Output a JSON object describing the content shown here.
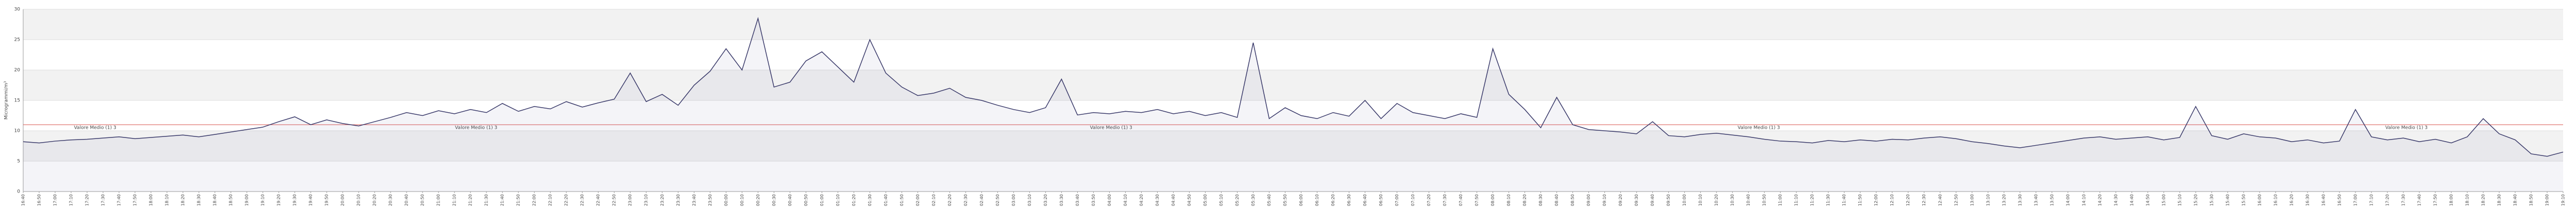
{
  "chart_data": {
    "type": "line",
    "y_label": "Microgrammi/m³",
    "ylim": [
      0,
      30
    ],
    "yticks": [
      0,
      5,
      10,
      15,
      20,
      25,
      30
    ],
    "grid": true,
    "mean_line": {
      "value": 11,
      "label": "Valore Medio (1) 3",
      "color": "#d9534f"
    },
    "categories": [
      "16:40",
      "16:50",
      "17:00",
      "17:10",
      "17:20",
      "17:30",
      "17:40",
      "17:50",
      "18:00",
      "18:10",
      "18:20",
      "18:30",
      "18:40",
      "18:50",
      "19:00",
      "19:10",
      "19:20",
      "19:30",
      "19:40",
      "19:50",
      "20:00",
      "20:10",
      "20:20",
      "20:30",
      "20:40",
      "20:50",
      "21:00",
      "21:10",
      "21:20",
      "21:30",
      "21:40",
      "21:50",
      "22:00",
      "22:10",
      "22:20",
      "22:30",
      "22:40",
      "22:50",
      "23:00",
      "23:10",
      "23:20",
      "23:30",
      "23:40",
      "23:50",
      "00:00",
      "00:10",
      "00:20",
      "00:30",
      "00:40",
      "00:50",
      "01:00",
      "01:10",
      "01:20",
      "01:30",
      "01:40",
      "01:50",
      "02:00",
      "02:10",
      "02:20",
      "02:30",
      "02:40",
      "02:50",
      "03:00",
      "03:10",
      "03:20",
      "03:30",
      "03:40",
      "03:50",
      "04:00",
      "04:10",
      "04:20",
      "04:30",
      "04:40",
      "04:50",
      "05:00",
      "05:10",
      "05:20",
      "05:30",
      "05:40",
      "05:50",
      "06:00",
      "06:10",
      "06:20",
      "06:30",
      "06:40",
      "06:50",
      "07:00",
      "07:10",
      "07:20",
      "07:30",
      "07:40",
      "07:50",
      "08:00",
      "08:10",
      "08:20",
      "08:30",
      "08:40",
      "08:50",
      "09:00",
      "09:10",
      "09:20",
      "09:30",
      "09:40",
      "09:50",
      "10:00",
      "10:10",
      "10:20",
      "10:30",
      "10:40",
      "10:50",
      "11:00",
      "11:10",
      "11:20",
      "11:30",
      "11:40",
      "11:50",
      "12:00",
      "12:10",
      "12:20",
      "12:30",
      "12:40",
      "12:50",
      "13:00",
      "13:10",
      "13:20",
      "13:30",
      "13:40",
      "13:50",
      "14:00",
      "14:10",
      "14:20",
      "14:30",
      "14:40",
      "14:50",
      "15:00",
      "15:10",
      "15:20",
      "15:30",
      "15:40",
      "15:50",
      "16:00",
      "16:10",
      "16:20",
      "16:30",
      "16:40",
      "16:50",
      "17:00",
      "17:10",
      "17:20",
      "17:30",
      "17:40",
      "17:50",
      "18:00",
      "18:10",
      "18:20",
      "18:30",
      "18:40",
      "18:50",
      "19:00",
      "19:10"
    ],
    "series": [
      {
        "color": "#3a3a6a",
        "values": [
          8.2,
          8.0,
          8.3,
          8.5,
          8.6,
          8.8,
          9.0,
          8.7,
          8.9,
          9.1,
          9.3,
          9.0,
          9.4,
          9.8,
          10.2,
          10.6,
          11.5,
          12.3,
          11.0,
          11.8,
          11.2,
          10.8,
          11.5,
          12.2,
          13.0,
          12.5,
          13.3,
          12.8,
          13.5,
          13.0,
          14.5,
          13.2,
          14.0,
          13.6,
          14.8,
          13.9,
          14.6,
          15.2,
          19.5,
          14.8,
          16.0,
          14.2,
          17.5,
          19.8,
          23.5,
          20.0,
          28.5,
          17.2,
          18.0,
          21.5,
          23.0,
          20.5,
          18.0,
          25.0,
          19.5,
          17.2,
          15.8,
          16.2,
          17.0,
          15.5,
          15.0,
          14.2,
          13.5,
          13.0,
          13.8,
          18.5,
          12.6,
          13.0,
          12.8,
          13.2,
          13.0,
          13.5,
          12.8,
          13.2,
          12.5,
          13.0,
          12.2,
          24.5,
          12.0,
          13.8,
          12.5,
          12.0,
          13.0,
          12.4,
          15.0,
          12.0,
          14.5,
          13.0,
          12.5,
          12.0,
          12.8,
          12.2,
          23.5,
          16.0,
          13.5,
          10.5,
          15.5,
          11.0,
          10.2,
          10.0,
          9.8,
          9.5,
          11.5,
          9.2,
          9.0,
          9.4,
          9.6,
          9.3,
          9.0,
          8.6,
          8.3,
          8.2,
          8.0,
          8.4,
          8.2,
          8.5,
          8.3,
          8.6,
          8.5,
          8.8,
          9.0,
          8.7,
          8.2,
          7.9,
          7.5,
          7.2,
          7.6,
          8.0,
          8.4,
          8.8,
          9.0,
          8.6,
          8.8,
          9.0,
          8.5,
          8.9,
          14.0,
          9.2,
          8.6,
          9.5,
          9.0,
          8.8,
          8.2,
          8.5,
          8.0,
          8.3,
          13.5,
          9.0,
          8.5,
          8.8,
          8.2,
          8.6,
          8.0,
          9.0,
          12.0,
          9.5,
          8.5,
          6.2,
          5.8,
          6.5
        ]
      }
    ]
  }
}
